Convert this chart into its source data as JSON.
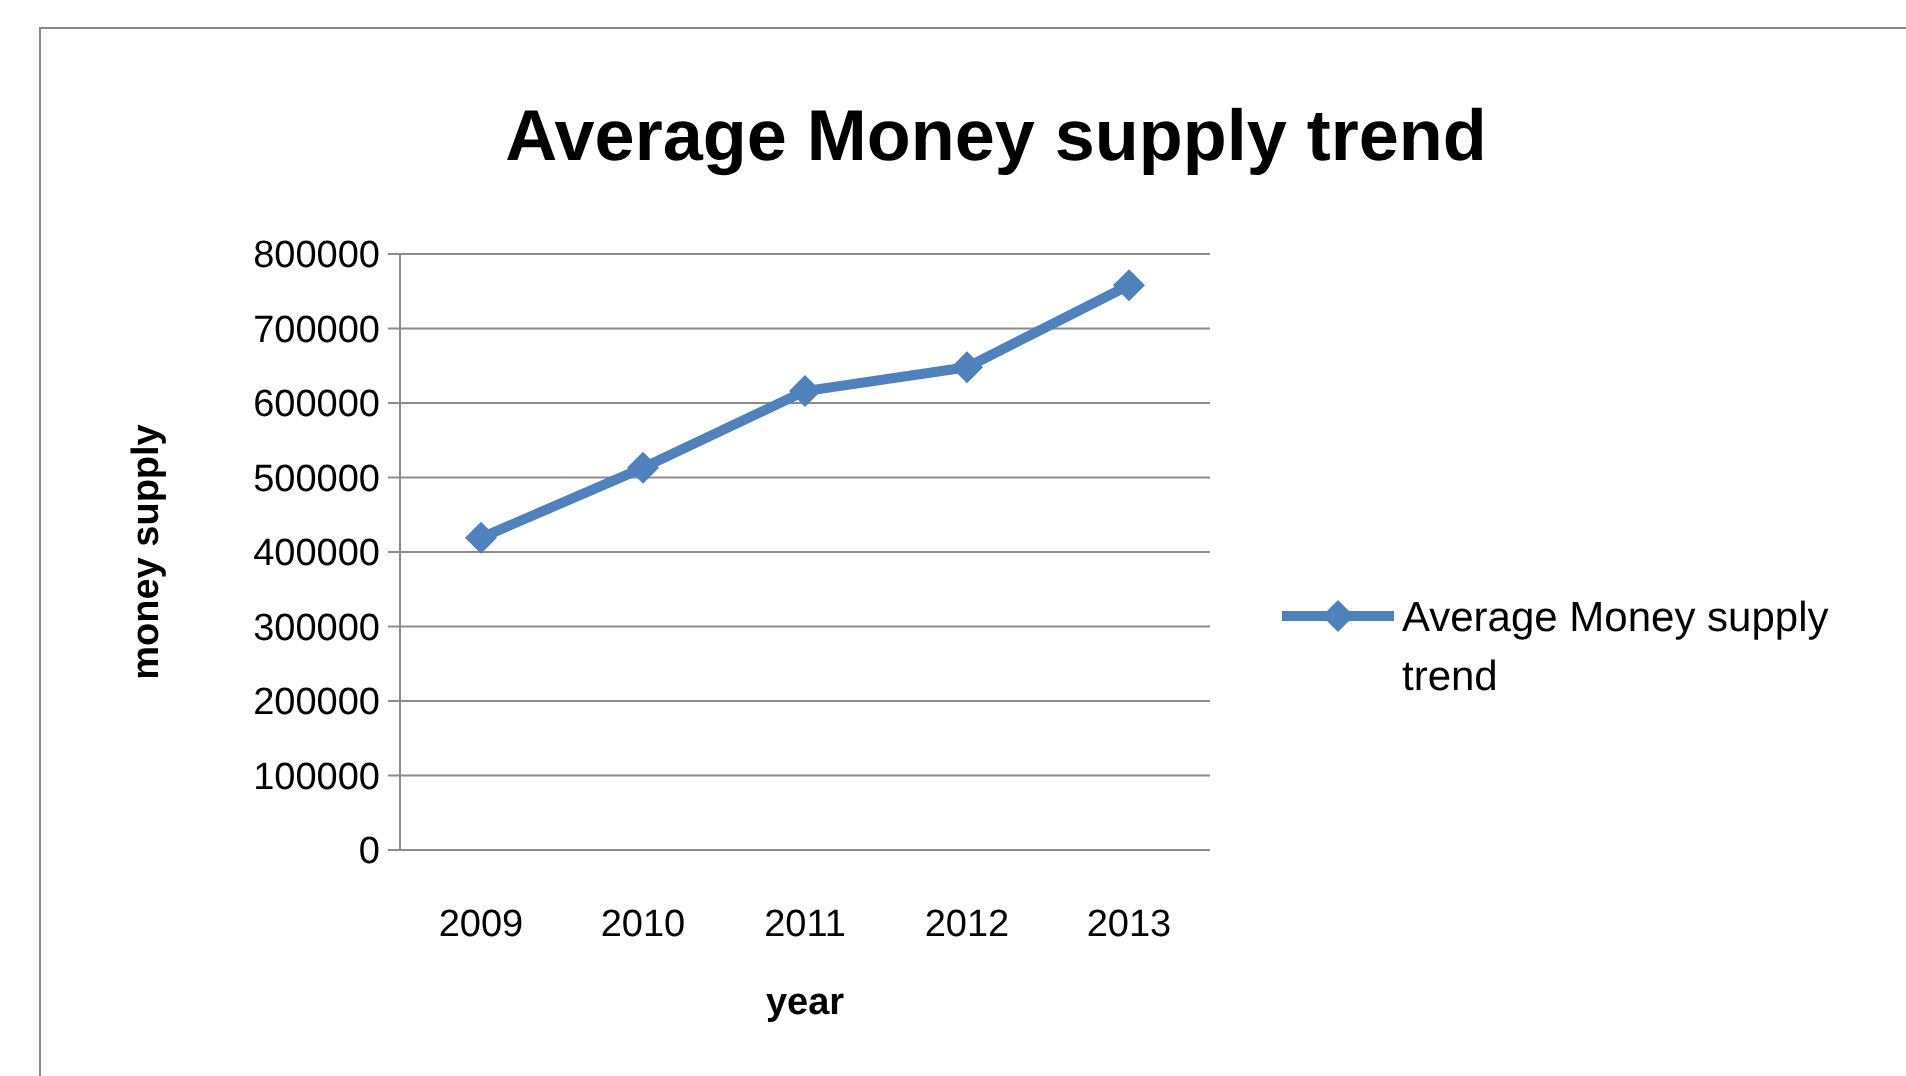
{
  "chart_data": {
    "type": "line",
    "title": "Average Money supply trend",
    "xlabel": "year",
    "ylabel": "money supply",
    "categories": [
      "2009",
      "2010",
      "2011",
      "2012",
      "2013"
    ],
    "series": [
      {
        "name": "Average Money supply trend",
        "color": "#4f81bd",
        "values": [
          419000,
          513000,
          616000,
          648000,
          758000
        ]
      }
    ],
    "ylim": [
      0,
      800000
    ],
    "yticks": [
      0,
      100000,
      200000,
      300000,
      400000,
      500000,
      600000,
      700000,
      800000
    ],
    "grid": "y",
    "legend": "right",
    "marker": "diamond",
    "line_style": "solid"
  }
}
